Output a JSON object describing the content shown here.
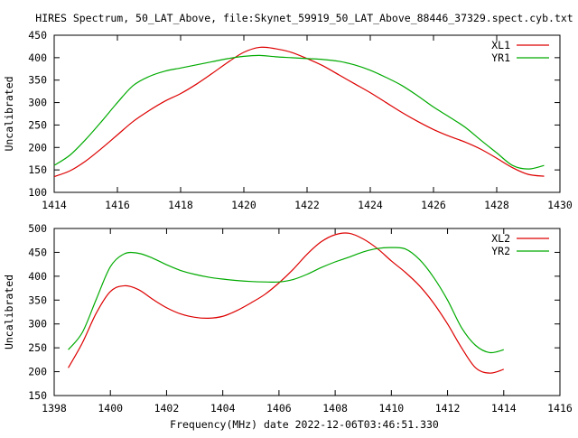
{
  "title": "HIRES Spectrum, 50_LAT_Above, file:Skynet_59919_50_LAT_Above_88446_37329.spect.cyb.txt",
  "footer": "Frequency(MHz) date 2022-12-06T03:46:51.330",
  "colors": {
    "red": "#dd0000",
    "green": "#00aa00",
    "axis": "#000000"
  },
  "chart_data": [
    {
      "type": "line",
      "xlabel": "",
      "ylabel": "Uncalibrated",
      "xlim": [
        1414,
        1430
      ],
      "ylim": [
        100,
        450
      ],
      "xticks": [
        1414,
        1416,
        1418,
        1420,
        1422,
        1424,
        1426,
        1428,
        1430
      ],
      "yticks": [
        100,
        150,
        200,
        250,
        300,
        350,
        400,
        450
      ],
      "grid": false,
      "legend": "top-right",
      "series": [
        {
          "name": "XL1",
          "color": "#dd0000",
          "x": [
            1414.0,
            1414.5,
            1415.0,
            1415.5,
            1416.0,
            1416.5,
            1417.0,
            1417.5,
            1418.0,
            1418.5,
            1419.0,
            1419.5,
            1420.0,
            1420.5,
            1421.0,
            1421.5,
            1422.0,
            1422.5,
            1423.0,
            1423.5,
            1424.0,
            1424.5,
            1425.0,
            1425.5,
            1426.0,
            1426.5,
            1427.0,
            1427.5,
            1428.0,
            1428.5,
            1429.0,
            1429.5
          ],
          "y": [
            135,
            148,
            170,
            198,
            228,
            258,
            282,
            303,
            320,
            341,
            365,
            390,
            412,
            423,
            420,
            412,
            398,
            382,
            362,
            342,
            322,
            300,
            278,
            258,
            240,
            225,
            212,
            196,
            176,
            155,
            140,
            136
          ]
        },
        {
          "name": "YR1",
          "color": "#00aa00",
          "x": [
            1414.0,
            1414.5,
            1415.0,
            1415.5,
            1416.0,
            1416.5,
            1417.0,
            1417.5,
            1418.0,
            1418.5,
            1419.0,
            1419.5,
            1420.0,
            1420.5,
            1421.0,
            1421.5,
            1422.0,
            1422.5,
            1423.0,
            1423.5,
            1424.0,
            1424.5,
            1425.0,
            1425.5,
            1426.0,
            1426.5,
            1427.0,
            1427.5,
            1428.0,
            1428.5,
            1429.0,
            1429.5
          ],
          "y": [
            160,
            183,
            218,
            258,
            300,
            338,
            358,
            370,
            377,
            384,
            391,
            398,
            403,
            405,
            402,
            400,
            398,
            396,
            392,
            384,
            372,
            356,
            338,
            315,
            290,
            268,
            245,
            216,
            188,
            160,
            152,
            160
          ]
        }
      ]
    },
    {
      "type": "line",
      "xlabel": "",
      "ylabel": "Uncalibrated",
      "xlim": [
        1398,
        1416
      ],
      "ylim": [
        150,
        500
      ],
      "xticks": [
        1398,
        1400,
        1402,
        1404,
        1406,
        1408,
        1410,
        1412,
        1414,
        1416
      ],
      "yticks": [
        150,
        200,
        250,
        300,
        350,
        400,
        450,
        500
      ],
      "grid": false,
      "legend": "top-right",
      "series": [
        {
          "name": "XL2",
          "color": "#dd0000",
          "x": [
            1398.5,
            1399.0,
            1399.5,
            1400.0,
            1400.5,
            1401.0,
            1401.5,
            1402.0,
            1402.5,
            1403.0,
            1403.5,
            1404.0,
            1404.5,
            1405.0,
            1405.5,
            1406.0,
            1406.5,
            1407.0,
            1407.5,
            1408.0,
            1408.5,
            1409.0,
            1409.5,
            1410.0,
            1410.5,
            1411.0,
            1411.5,
            1412.0,
            1412.5,
            1413.0,
            1413.5,
            1414.0
          ],
          "y": [
            208,
            260,
            323,
            368,
            380,
            372,
            352,
            334,
            321,
            314,
            312,
            316,
            328,
            344,
            362,
            386,
            414,
            446,
            472,
            487,
            490,
            478,
            458,
            432,
            408,
            380,
            344,
            300,
            250,
            208,
            197,
            205
          ]
        },
        {
          "name": "YR2",
          "color": "#00aa00",
          "x": [
            1398.5,
            1399.0,
            1399.5,
            1400.0,
            1400.5,
            1401.0,
            1401.5,
            1402.0,
            1402.5,
            1403.0,
            1403.5,
            1404.0,
            1404.5,
            1405.0,
            1405.5,
            1406.0,
            1406.5,
            1407.0,
            1407.5,
            1408.0,
            1408.5,
            1409.0,
            1409.5,
            1410.0,
            1410.5,
            1411.0,
            1411.5,
            1412.0,
            1412.5,
            1413.0,
            1413.5,
            1414.0
          ],
          "y": [
            246,
            282,
            352,
            420,
            447,
            448,
            438,
            424,
            412,
            404,
            398,
            394,
            391,
            389,
            388,
            388,
            393,
            404,
            418,
            430,
            440,
            451,
            458,
            460,
            457,
            435,
            398,
            350,
            292,
            255,
            240,
            246
          ]
        }
      ]
    }
  ]
}
